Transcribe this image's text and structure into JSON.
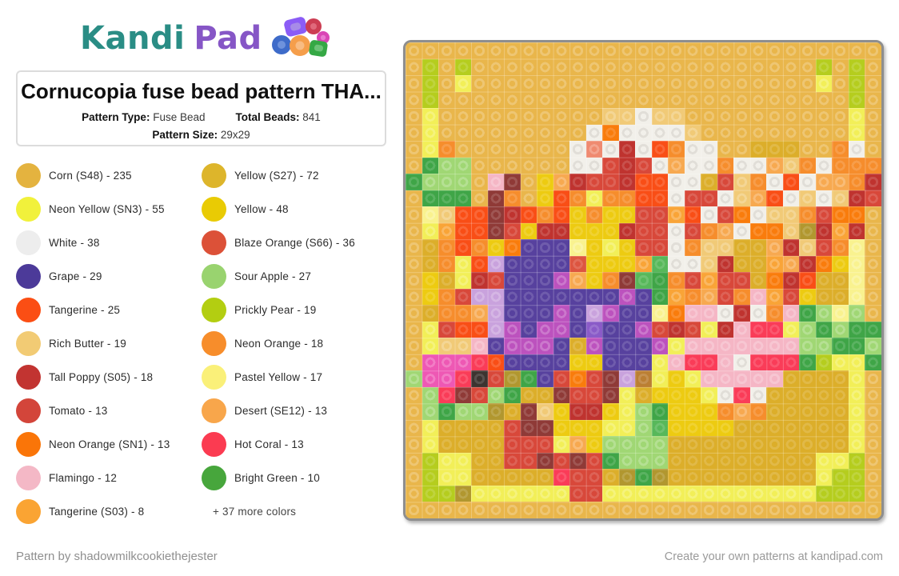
{
  "logo": {
    "brand_part1": "Kandi",
    "brand_part2": "Pad",
    "color_kandi": "#2A8D85",
    "color_pad": "#8656C6",
    "beads_icon": "bead-cluster"
  },
  "info_card": {
    "title": "Cornucopia fuse bead pattern THA...",
    "pattern_type_label": "Pattern Type:",
    "pattern_type": "Fuse Bead",
    "total_beads_label": "Total Beads:",
    "total_beads": "841",
    "pattern_size_label": "Pattern Size:",
    "pattern_size": "29x29"
  },
  "legend": {
    "column1": [
      {
        "label": "Corn (S48) - 235",
        "color": "#E4B33F"
      },
      {
        "label": "Neon Yellow (SN3) - 55",
        "color": "#F1F13B"
      },
      {
        "label": "White - 38",
        "color": "#EDEDED"
      },
      {
        "label": "Grape - 29",
        "color": "#4C3A99"
      },
      {
        "label": "Tangerine - 25",
        "color": "#FB4E14"
      },
      {
        "label": "Rich Butter - 19",
        "color": "#F2CB74"
      },
      {
        "label": "Tall Poppy (S05) - 18",
        "color": "#C23431"
      },
      {
        "label": "Tomato - 13",
        "color": "#D3453A"
      },
      {
        "label": "Neon Orange (SN1) - 13",
        "color": "#FA7508"
      },
      {
        "label": "Flamingo - 12",
        "color": "#F4B8C6"
      },
      {
        "label": "Tangerine (S03) - 8",
        "color": "#FAA433"
      }
    ],
    "column2": [
      {
        "label": "Yellow (S27) - 72",
        "color": "#DDB52B"
      },
      {
        "label": "Yellow - 48",
        "color": "#E9CB04"
      },
      {
        "label": "Blaze Orange (S66) - 36",
        "color": "#DC5138"
      },
      {
        "label": "Sour Apple - 27",
        "color": "#99D36F"
      },
      {
        "label": "Prickly Pear - 19",
        "color": "#B3CE11"
      },
      {
        "label": "Neon Orange - 18",
        "color": "#F78D2B"
      },
      {
        "label": "Pastel Yellow - 17",
        "color": "#FAF079"
      },
      {
        "label": "Desert (SE12) - 13",
        "color": "#F8A64B"
      },
      {
        "label": "Hot Coral - 13",
        "color": "#FB3B51"
      },
      {
        "label": "Bright Green - 10",
        "color": "#47A63C"
      }
    ],
    "more_colors_label": "+ 37 more colors"
  },
  "pattern_grid": {
    "rows": 29,
    "cols": 29,
    "palette": {
      ".": "#E9B64B",
      "m": "#DCAE2A",
      "y": "#EDCB11",
      "n": "#F2EF58",
      "p": "#F9F28F",
      "w": "#F2F0EA",
      "g": "#57419E",
      "v": "#8A5BC8",
      "l": "#C9A2DD",
      "o": "#BC52BE",
      "k": "#EE58B4",
      "f": "#F5B6C5",
      "h": "#FA3C58",
      "t": "#F94E16",
      "e": "#D8483A",
      "s": "#BF332F",
      "d": "#8F3A37",
      "b": "#DD5540",
      "u": "#F97C0C",
      "x": "#F68D2C",
      "z": "#F9A437",
      "r": "#F7A950",
      "i": "#F1CA77",
      "a": "#A0D774",
      "q": "#B5CD1E",
      "j": "#3FA547",
      "A": "#57B85A",
      "O": "#B1972F",
      "B": "#3C3430",
      "N": "#BB7F33",
      "S": "#EF8A70"
    },
    "cells": [
      ".............................",
      ".q.q.....................q.q.",
      ".q.n.....................n.q.",
      ".q.........................q.",
      ".n..........iiwii..........n.",
      ".n.........wuwwwwi.........n.",
      ".nx.......wSwswtxww..mmm..xw.",
      ".jaa......wwesewrwwxwwrixwxxx",
      "jaaa.fd.yrseesttwwmeixwtwrrxs",
      ".jjj.dx.ytxnxxttweewirtwiwise",
      ".pittdstxtyxyyeeztweuwiixeuu.",
      ".nzttdeyssyyyseewexrwuuiOszs.",
      ".mxtxyugggpynyeewxiimmrsiexp.",
      ".mxntlggggbyyyzAwwismmzrsuyp.",
      ".ymnsegggoryxdAjxezeemustmmp.",
      ".yxellgggggggogjzxrexfzeymmp.",
      ".mxxrlgggogloggpuffwswxfjapa.",
      ".nettlogoogvggoesensfhhnajajj",
      ".niifgooogmogggonfffffffaajja",
      ".kkkhtggggyygggnfhhfwhhhjqnnj",
      "akkhBeOjgeuedlNnynfffffmmmmn.",
      ".ahdeajmmdeednmyyynwhwmmmmmn.",
      ".ajaaOmdiyssynajyyyxrxmmmmmn.",
      ".nmmmmeddyyynnaAyyyymmmmmmmn.",
      ".nmmmmeeenryaaaammmmmmmmmmmn.",
      ".qnnmmeededejaaammmmmmmmmnnq.",
      ".qnnmmmmmheemOjOmmmmmmmmmnqq.",
      ".qqOnnnnnneennnnnnnnnnnnnqqq.",
      "............................."
    ]
  },
  "footer": {
    "credit": "Pattern by shadowmilkcookiethejester",
    "promo": "Create your own patterns at kandipad.com"
  }
}
